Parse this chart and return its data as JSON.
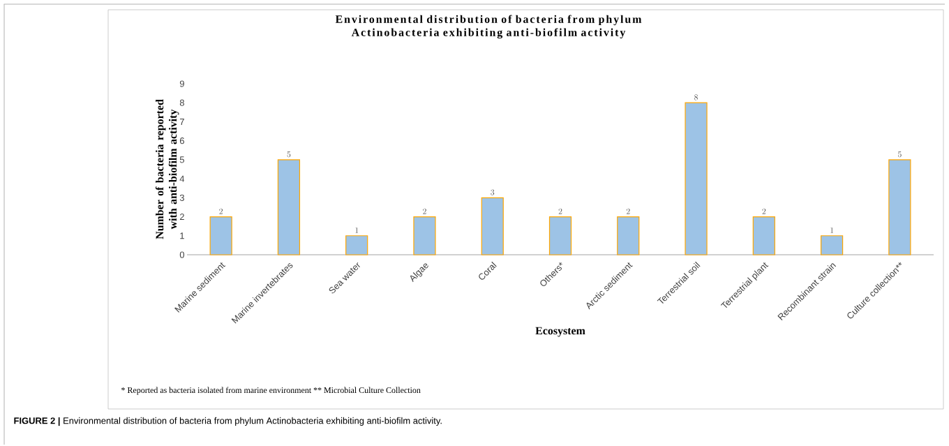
{
  "chart_data": {
    "type": "bar",
    "title": "Environmental distribution of bacteria from phylum Actinobacteria exhibiting anti-biofilm activity",
    "xlabel": "Ecosystem",
    "ylabel": "Number of bacteria reported with anti-biofilm activity",
    "categories": [
      "Marine sediment",
      "Marine invertebrates",
      "Sea water",
      "Algae",
      "Coral",
      "Others*",
      "Arctic sediment",
      "Terrestrial soil",
      "Terrestrial plant",
      "Recombinant strain",
      "Culture collection**"
    ],
    "values": [
      2,
      5,
      1,
      2,
      3,
      2,
      2,
      8,
      2,
      1,
      5
    ],
    "color": "#9dc3e6",
    "ylim": [
      0,
      9
    ],
    "yticks": [
      0,
      1,
      2,
      3,
      4,
      5,
      6,
      7,
      8,
      9
    ],
    "data_labels": true,
    "annotations": [
      "* Reported as bacteria isolated from marine environment ** Microbial Culture Collection",
      "**FIGURE 2 |** Environmental distribution of bacteria from phylum Actinobacteria exhibiting anti-biofilm activity."
    ]
  }
}
